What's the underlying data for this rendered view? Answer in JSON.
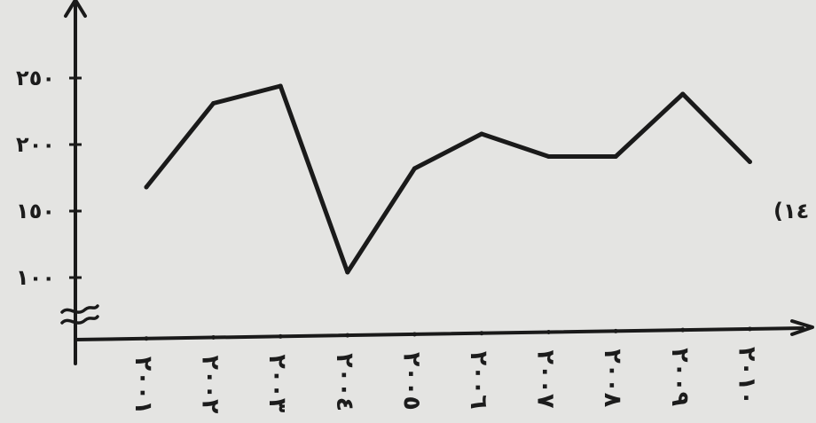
{
  "chart_data": {
    "type": "line",
    "title": "",
    "xlabel": "",
    "ylabel": "",
    "y_tick_labels": [
      "١٠٠",
      "١٥٠",
      "٢٠٠",
      "٢٥٠"
    ],
    "y_tick_values": [
      100,
      150,
      200,
      250
    ],
    "axis_break": true,
    "ylim": [
      50,
      300
    ],
    "categories": [
      "٢٠٠١",
      "٢٠٠٢",
      "٢٠٠٣",
      "٢٠٠٤",
      "٢٠٠٥",
      "٢٠٠٦",
      "٢٠٠٧",
      "٢٠٠٨",
      "٢٠٠٩",
      "٢٠١٠"
    ],
    "series": [
      {
        "values": [
          168,
          231,
          244,
          104,
          182,
          208,
          191,
          191,
          238,
          187
        ]
      }
    ],
    "side_annotation": "(١٤",
    "grid": false,
    "line_color": "#1a1a1a"
  }
}
